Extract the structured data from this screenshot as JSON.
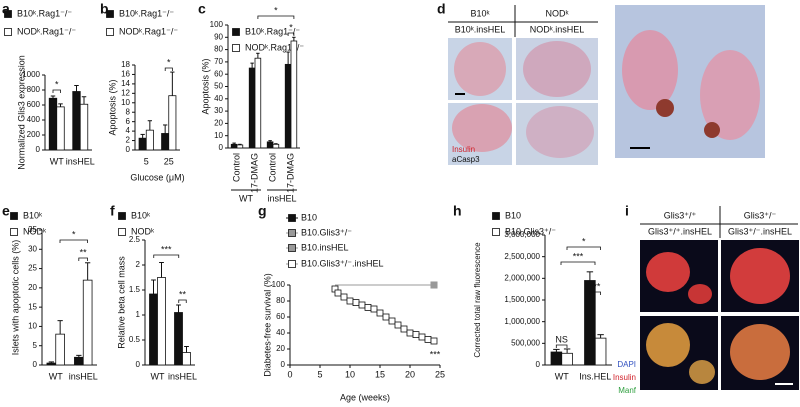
{
  "chart_data": [
    {
      "type": "bar",
      "panel": "a",
      "ylabel": "Normalized Glis3 expression",
      "categories": [
        "WT",
        "insHEL"
      ],
      "series": [
        {
          "name": "B10ᵏ.Rag1⁻/⁻",
          "color": "#111111",
          "values": [
            690,
            780
          ],
          "errors": [
            30,
            80
          ]
        },
        {
          "name": "NODᵏ.Rag1⁻/⁻",
          "color": "#ffffff",
          "values": [
            575,
            610
          ],
          "errors": [
            40,
            100
          ]
        }
      ],
      "ylim": [
        0,
        1000
      ],
      "yticks": [
        0,
        200,
        400,
        600,
        800,
        1000
      ],
      "annotations": [
        "*"
      ]
    },
    {
      "type": "bar",
      "panel": "b",
      "ylabel": "Apoptosis (%)",
      "xlabel": "Glucose (μM)",
      "categories": [
        "5",
        "25"
      ],
      "series": [
        {
          "name": "B10ᵏ.Rag1⁻/⁻",
          "color": "#111111",
          "values": [
            2.5,
            3.5
          ],
          "errors": [
            0.8,
            1.8
          ]
        },
        {
          "name": "NODᵏ.Rag1⁻/⁻",
          "color": "#ffffff",
          "values": [
            4.2,
            11.5
          ],
          "errors": [
            2,
            5
          ]
        }
      ],
      "ylim": [
        0,
        18
      ],
      "yticks": [
        0,
        2,
        4,
        6,
        8,
        10,
        12,
        14,
        16,
        18
      ],
      "annotations": [
        "*"
      ]
    },
    {
      "type": "bar",
      "panel": "c",
      "ylabel": "Apoptosis (%)",
      "categories": [
        "Control",
        "17-DMAG",
        "Control",
        "17-DMAG"
      ],
      "groups": [
        "WT",
        "insHEL"
      ],
      "series": [
        {
          "name": "B10ᵏ.Rag1⁻/⁻",
          "color": "#111111",
          "values": [
            3,
            65,
            5,
            68
          ],
          "errors": [
            1,
            4,
            1,
            10
          ]
        },
        {
          "name": "NODᵏ.Rag1⁻/⁻",
          "color": "#ffffff",
          "values": [
            2.5,
            73,
            3,
            87
          ],
          "errors": [
            0.5,
            4,
            0.5,
            3
          ]
        }
      ],
      "ylim": [
        0,
        100
      ],
      "yticks": [
        0,
        10,
        20,
        30,
        40,
        50,
        60,
        70,
        80,
        90,
        100
      ],
      "annotations": [
        "*",
        "*"
      ]
    },
    {
      "type": "bar",
      "panel": "e",
      "ylabel": "Islets with apoptotic cells (%)",
      "categories": [
        "WT",
        "insHEL"
      ],
      "series": [
        {
          "name": "B10ᵏ",
          "color": "#111111",
          "values": [
            0.5,
            2
          ],
          "errors": [
            0.3,
            0.5
          ]
        },
        {
          "name": "NODᵏ",
          "color": "#ffffff",
          "values": [
            8,
            22
          ],
          "errors": [
            3.5,
            4.5
          ]
        }
      ],
      "ylim": [
        0,
        35
      ],
      "yticks": [
        0,
        5,
        10,
        15,
        20,
        25,
        30,
        35
      ],
      "annotations": [
        "**",
        "*"
      ]
    },
    {
      "type": "bar",
      "panel": "f",
      "ylabel": "Relative beta cell mass",
      "categories": [
        "WT",
        "insHEL"
      ],
      "series": [
        {
          "name": "B10ᵏ",
          "color": "#111111",
          "values": [
            1.42,
            1.05
          ],
          "errors": [
            0.28,
            0.15
          ]
        },
        {
          "name": "NODᵏ",
          "color": "#ffffff",
          "values": [
            1.75,
            0.25
          ],
          "errors": [
            0.3,
            0.12
          ]
        }
      ],
      "ylim": [
        0,
        2.5
      ],
      "yticks": [
        0,
        0.5,
        1,
        1.5,
        2,
        2.5
      ],
      "annotations": [
        "**",
        "***"
      ]
    },
    {
      "type": "line",
      "panel": "g",
      "ylabel": "Diabetes-free survival (%)",
      "xlabel": "Age (weeks)",
      "series": [
        {
          "name": "B10",
          "color": "#111111",
          "x": [
            7.5,
            24
          ],
          "values": [
            100,
            100
          ]
        },
        {
          "name": "B10.Glis3⁺/⁻",
          "color": "#999999",
          "x": [
            7.5,
            24
          ],
          "values": [
            100,
            100
          ]
        },
        {
          "name": "B10.insHEL",
          "color": "#999999",
          "x": [
            7.5,
            24
          ],
          "values": [
            100,
            100
          ]
        },
        {
          "name": "B10.Glis3⁺/⁻.insHEL",
          "color": "#ffffff",
          "x": [
            7.5,
            8,
            9,
            10,
            11,
            12,
            13,
            14,
            15,
            16,
            17,
            18,
            19,
            20,
            21,
            22,
            23,
            24
          ],
          "values": [
            95,
            90,
            85,
            80,
            78,
            75,
            72,
            70,
            65,
            60,
            55,
            50,
            45,
            40,
            38,
            35,
            32,
            30
          ]
        }
      ],
      "xlim": [
        0,
        25
      ],
      "xticks": [
        0,
        5,
        10,
        15,
        20,
        25
      ],
      "ylim": [
        0,
        100
      ],
      "yticks": [
        0,
        20,
        40,
        60,
        80,
        100
      ],
      "annotations": [
        "***"
      ]
    },
    {
      "type": "bar",
      "panel": "h",
      "ylabel": "Corrected total raw fluorescence",
      "categories": [
        "WT",
        "Ins.HEL"
      ],
      "series": [
        {
          "name": "B10",
          "color": "#111111",
          "values": [
            300000,
            1950000
          ],
          "errors": [
            60000,
            200000
          ]
        },
        {
          "name": "B10.Glis3⁺/⁻",
          "color": "#ffffff",
          "values": [
            270000,
            620000
          ],
          "errors": [
            100000,
            80000
          ]
        }
      ],
      "ylim": [
        0,
        3000000
      ],
      "yticks": [
        0,
        {
          "value": 500000,
          "label": "500,000"
        },
        {
          "value": 1000000,
          "label": "1,000,000"
        },
        {
          "value": 1500000,
          "label": "1,500,000"
        },
        {
          "value": 2000000,
          "label": "2,000,000"
        },
        {
          "value": 2500000,
          "label": "2,500,000"
        },
        {
          "value": 3000000,
          "label": "3,000,000"
        }
      ],
      "annotations": [
        "NS",
        "***",
        "***",
        "*"
      ]
    }
  ],
  "image_panels": [
    {
      "panel": "d",
      "column_headers": [
        "B10ᵏ",
        "NODᵏ"
      ],
      "row_labels": [
        "B10ᵏ.insHEL",
        "NODᵏ.insHEL"
      ],
      "stains": [
        "Insulin",
        "aCasp3"
      ]
    },
    {
      "panel": "i",
      "column_headers": [
        "Glis3⁺/⁺",
        "Glis3⁺/⁻"
      ],
      "row_labels": [
        "Glis3⁺/⁺.insHEL",
        "Glis3⁺/⁻.insHEL"
      ],
      "stains": [
        "DAPI",
        "Insulin",
        "Manf"
      ]
    }
  ]
}
